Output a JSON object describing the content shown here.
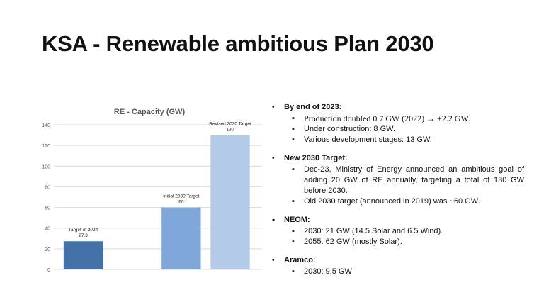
{
  "slide": {
    "title": "KSA - Renewable ambitious Plan 2030"
  },
  "chart_data": {
    "type": "bar",
    "title": "RE - Capacity (GW)",
    "categories": [
      "Target of 2024",
      "Initial 2030 Target",
      "Revised 2030 Target"
    ],
    "values": [
      27.3,
      60,
      130
    ],
    "data_labels": [
      "27.3",
      "60",
      "130"
    ],
    "colors": [
      "#4472a8",
      "#7fa7d9",
      "#b4cae9"
    ],
    "ylim": [
      0,
      140
    ],
    "yticks": [
      0,
      20,
      40,
      60,
      80,
      100,
      120,
      140
    ],
    "xlabel": "",
    "ylabel": "",
    "grid": true,
    "legend": "none"
  },
  "bullets": {
    "sections": [
      {
        "title": "By end of 2023:",
        "items": [
          "Production doubled 0.7 GW (2022) → +2.2 GW.",
          "Under construction: 8 GW.",
          "Various development stages: 13 GW."
        ]
      },
      {
        "title": "New 2030 Target:",
        "items": [
          "Dec-23, Ministry of Energy announced an ambitious goal of adding 20 GW of RE annually, targeting a total of 130 GW before 2030.",
          "Old 2030 target (announced in 2019) was ~60 GW."
        ]
      },
      {
        "title": "NEOM:",
        "items": [
          "2030: 21 GW (14.5 Solar and 6.5 Wind).",
          "2055: 62 GW (mostly Solar)."
        ]
      },
      {
        "title": "Aramco:",
        "items": [
          "2030: 9.5 GW"
        ]
      }
    ]
  }
}
